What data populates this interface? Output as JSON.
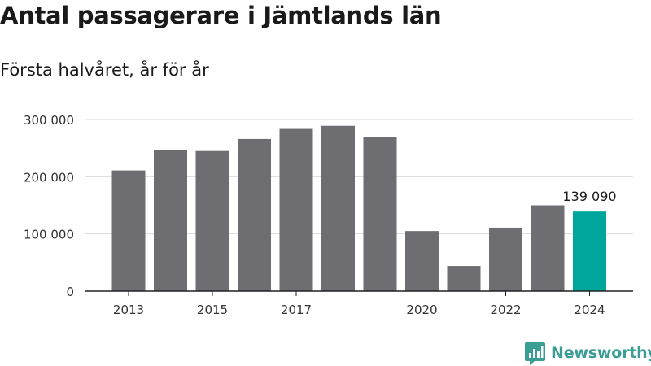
{
  "title": "Antal passagerare i Jämtlands län",
  "subtitle": "Första halvåret, år för år",
  "logo": {
    "text": "Newsworthy",
    "icon": "newsworthy-logo-icon",
    "color": "#3a9e95"
  },
  "chart_data": {
    "type": "bar",
    "title": "Antal passagerare i Jämtlands län",
    "subtitle": "Första halvåret, år för år",
    "xlabel": "",
    "ylabel": "",
    "categories": [
      "2013",
      "2014",
      "2015",
      "2016",
      "2017",
      "2018",
      "2019",
      "2020",
      "2021",
      "2022",
      "2023",
      "2024"
    ],
    "x_tick_labels": [
      "2013",
      "",
      "2015",
      "",
      "2017",
      "",
      "",
      "2020",
      "",
      "2022",
      "",
      "2024"
    ],
    "values": [
      211000,
      247000,
      245000,
      266000,
      285000,
      289000,
      269000,
      105000,
      44000,
      111000,
      150000,
      139090
    ],
    "ylim": [
      0,
      300000
    ],
    "yticks": [
      0,
      100000,
      200000,
      300000
    ],
    "ytick_labels": [
      "0",
      "100 000",
      "200 000",
      "300 000"
    ],
    "grid": true,
    "bar_color": "#6e6d72",
    "highlight_color": "#00a69c",
    "highlight_index": 11,
    "data_labels": [
      {
        "index": 11,
        "text": "139 090"
      }
    ]
  }
}
